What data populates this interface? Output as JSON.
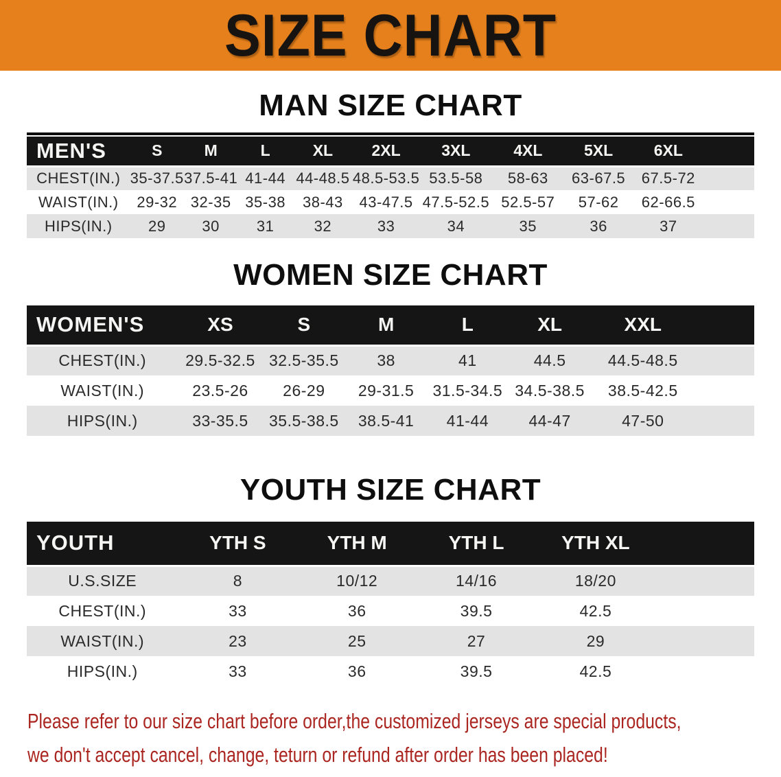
{
  "banner": {
    "title": "SIZE CHART",
    "bg_color": "#E5801C",
    "text_color": "#171310"
  },
  "sections": [
    {
      "heading": "MAN SIZE CHART",
      "table": {
        "name": "mens-size-table",
        "css_class": "table-men",
        "header_label": "MEN'S",
        "columns": [
          "S",
          "M",
          "L",
          "XL",
          "2XL",
          "3XL",
          "4XL",
          "5XL",
          "6XL"
        ],
        "col_widths": [
          "14.2%",
          "7.4%",
          "7.4%",
          "7.6%",
          "8.2%",
          "9.2%",
          "10%",
          "9.8%",
          "9.6%",
          "9.6%",
          "7%"
        ],
        "rows": [
          {
            "label": "CHEST(IN.)",
            "values": [
              "35-37.5",
              "37.5-41",
              "41-44",
              "44-48.5",
              "48.5-53.5",
              "53.5-58",
              "58-63",
              "63-67.5",
              "67.5-72"
            ]
          },
          {
            "label": "WAIST(IN.)",
            "values": [
              "29-32",
              "32-35",
              "35-38",
              "38-43",
              "43-47.5",
              "47.5-52.5",
              "52.5-57",
              "57-62",
              "62-66.5"
            ]
          },
          {
            "label": "HIPS(IN.)",
            "values": [
              "29",
              "30",
              "31",
              "32",
              "33",
              "34",
              "35",
              "36",
              "37"
            ]
          }
        ]
      }
    },
    {
      "heading": "WOMEN SIZE CHART",
      "table": {
        "name": "womens-size-table",
        "css_class": "table-women",
        "header_label": "WOMEN'S",
        "columns": [
          "XS",
          "S",
          "M",
          "L",
          "XL",
          "XXL"
        ],
        "col_widths": [
          "20.8%",
          "11.6%",
          "11.4%",
          "11.2%",
          "11.2%",
          "11.4%",
          "14.2%",
          "8.2%"
        ],
        "rows": [
          {
            "label": "CHEST(IN.)",
            "values": [
              "29.5-32.5",
              "32.5-35.5",
              "38",
              "41",
              "44.5",
              "44.5-48.5"
            ]
          },
          {
            "label": "WAIST(IN.)",
            "values": [
              "23.5-26",
              "26-29",
              "29-31.5",
              "31.5-34.5",
              "34.5-38.5",
              "38.5-42.5"
            ]
          },
          {
            "label": "HIPS(IN.)",
            "values": [
              "33-35.5",
              "35.5-38.5",
              "38.5-41",
              "41-44",
              "44-47",
              "47-50"
            ]
          }
        ]
      }
    },
    {
      "heading": "YOUTH SIZE CHART",
      "table": {
        "name": "youth-size-table",
        "css_class": "table-youth",
        "header_label": "YOUTH",
        "columns": [
          "YTH S",
          "YTH M",
          "YTH L",
          "YTH XL"
        ],
        "col_widths": [
          "20.8%",
          "16.4%",
          "16.4%",
          "16.4%",
          "16.4%",
          "13.6%"
        ],
        "rows": [
          {
            "label": "U.S.SIZE",
            "values": [
              "8",
              "10/12",
              "14/16",
              "18/20"
            ]
          },
          {
            "label": "CHEST(IN.)",
            "values": [
              "33",
              "36",
              "39.5",
              "42.5"
            ]
          },
          {
            "label": "WAIST(IN.)",
            "values": [
              "23",
              "25",
              "27",
              "29"
            ]
          },
          {
            "label": "HIPS(IN.)",
            "values": [
              "33",
              "36",
              "39.5",
              "42.5"
            ]
          }
        ]
      }
    }
  ],
  "footer": {
    "lines": [
      "Please refer to our size chart before order,the customized jerseys are special products,",
      "we don't accept cancel, change, teturn or refund after order has been placed!"
    ],
    "text_color": "#AB2621"
  },
  "style_colors": {
    "table_header_bg": "#151515",
    "row_stripe": "#E3E3E3",
    "row_plain": "#FFFFFF"
  }
}
